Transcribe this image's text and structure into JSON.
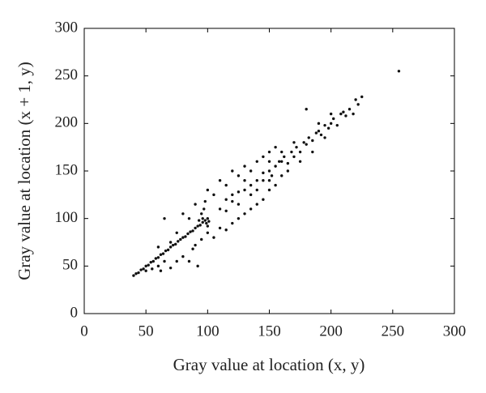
{
  "chart_data": {
    "type": "scatter",
    "x_label": "Gray value at location (x, y)",
    "y_label": "Gray value at location (x + 1, y)",
    "color": "#111111",
    "xlim": [
      0,
      300
    ],
    "ylim": [
      0,
      300
    ],
    "xticks": [
      0,
      50,
      100,
      150,
      200,
      250,
      300
    ],
    "yticks": [
      0,
      50,
      100,
      150,
      200,
      250,
      300
    ],
    "x": [
      40,
      42,
      44,
      46,
      48,
      50,
      52,
      54,
      56,
      58,
      60,
      62,
      64,
      66,
      68,
      70,
      72,
      74,
      76,
      78,
      80,
      82,
      84,
      86,
      88,
      90,
      92,
      94,
      96,
      98,
      100,
      95,
      97,
      99,
      100,
      98,
      96,
      101,
      93,
      50,
      55,
      60,
      62,
      65,
      70,
      75,
      80,
      85,
      88,
      92,
      90,
      95,
      100,
      105,
      110,
      115,
      120,
      125,
      130,
      135,
      140,
      145,
      150,
      155,
      60,
      65,
      70,
      75,
      80,
      85,
      90,
      100,
      105,
      110,
      115,
      120,
      125,
      130,
      135,
      140,
      145,
      150,
      155,
      160,
      110,
      115,
      120,
      125,
      130,
      135,
      140,
      145,
      150,
      152,
      155,
      158,
      160,
      162,
      165,
      168,
      170,
      172,
      175,
      178,
      180,
      182,
      185,
      188,
      190,
      192,
      195,
      198,
      200,
      202,
      205,
      208,
      210,
      212,
      215,
      218,
      220,
      222,
      225,
      140,
      145,
      150,
      160,
      165,
      170,
      175,
      185,
      190,
      195,
      200,
      180,
      130,
      125,
      135,
      150,
      120,
      115,
      255
    ],
    "values": [
      40,
      42,
      43,
      46,
      47,
      50,
      51,
      54,
      55,
      58,
      59,
      62,
      63,
      66,
      67,
      70,
      72,
      73,
      76,
      78,
      80,
      81,
      84,
      86,
      87,
      90,
      92,
      93,
      96,
      98,
      100,
      105,
      110,
      95,
      92,
      118,
      100,
      97,
      98,
      45,
      47,
      50,
      45,
      55,
      48,
      55,
      60,
      55,
      68,
      50,
      72,
      78,
      85,
      80,
      90,
      88,
      95,
      100,
      105,
      110,
      115,
      120,
      130,
      135,
      70,
      100,
      75,
      85,
      105,
      100,
      115,
      130,
      125,
      140,
      135,
      150,
      145,
      155,
      150,
      160,
      165,
      170,
      175,
      170,
      110,
      120,
      118,
      128,
      130,
      135,
      140,
      148,
      150,
      145,
      155,
      160,
      160,
      165,
      158,
      170,
      165,
      175,
      170,
      180,
      178,
      185,
      182,
      190,
      192,
      188,
      198,
      195,
      200,
      205,
      198,
      210,
      212,
      208,
      215,
      210,
      225,
      220,
      228,
      130,
      140,
      160,
      145,
      150,
      180,
      160,
      170,
      200,
      185,
      210,
      215,
      140,
      115,
      125,
      140,
      125,
      108,
      255
    ]
  }
}
